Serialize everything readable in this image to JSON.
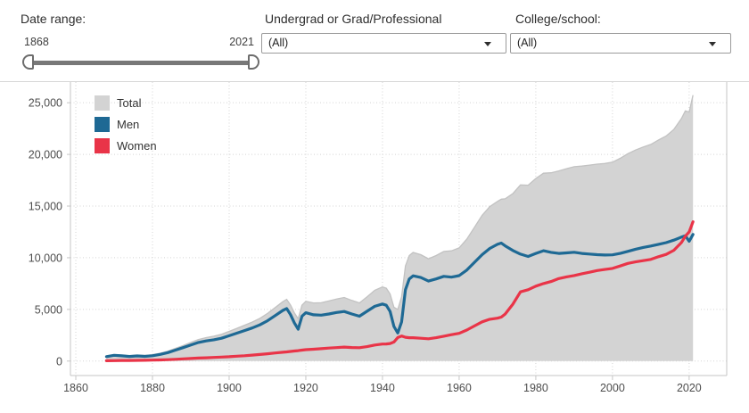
{
  "filters": {
    "date_range": {
      "label": "Date range:",
      "min_value": "1868",
      "max_value": "2021"
    },
    "level_filter": {
      "label": "Undergrad or Grad/Professional",
      "value": "(All)"
    },
    "college_filter": {
      "label": "College/school:",
      "value": "(All)"
    }
  },
  "chart_data": {
    "type": "area",
    "title": "",
    "xlabel": "",
    "ylabel": "",
    "grid": "dotted",
    "legend_position": "top-left",
    "x_ticks": [
      1860,
      1880,
      1900,
      1920,
      1940,
      1960,
      1980,
      2000,
      2020
    ],
    "y_ticks": [
      0,
      5000,
      10000,
      15000,
      20000,
      25000
    ],
    "y_tick_labels": [
      "0",
      "5,000",
      "10,000",
      "15,000",
      "20,000",
      "25,000"
    ],
    "xlim": [
      1858.6,
      2029.8
    ],
    "ylim": [
      -1400,
      27000
    ],
    "years": [
      1868,
      1870,
      1872,
      1874,
      1876,
      1878,
      1880,
      1882,
      1884,
      1886,
      1888,
      1890,
      1892,
      1894,
      1896,
      1898,
      1900,
      1902,
      1904,
      1906,
      1908,
      1910,
      1912,
      1914,
      1915,
      1916,
      1917,
      1918,
      1919,
      1920,
      1922,
      1924,
      1926,
      1928,
      1930,
      1932,
      1934,
      1936,
      1938,
      1940,
      1941,
      1942,
      1943,
      1944,
      1945,
      1946,
      1947,
      1948,
      1950,
      1952,
      1954,
      1956,
      1958,
      1960,
      1962,
      1964,
      1966,
      1968,
      1970,
      1971,
      1972,
      1974,
      1976,
      1978,
      1980,
      1982,
      1984,
      1986,
      1988,
      1990,
      1992,
      1994,
      1996,
      1998,
      2000,
      2002,
      2004,
      2006,
      2008,
      2010,
      2012,
      2014,
      2016,
      2018,
      2019,
      2020,
      2021
    ],
    "series": [
      {
        "name": "Total",
        "color": "#d3d3d3",
        "edge_color": "#c2c2c2",
        "style": "area",
        "values": [
          460,
          605,
          565,
          510,
          570,
          540,
          615,
          760,
          960,
          1230,
          1510,
          1810,
          2090,
          2270,
          2410,
          2595,
          2875,
          3170,
          3470,
          3775,
          4135,
          4605,
          5180,
          5750,
          5970,
          5430,
          4670,
          4090,
          5410,
          5780,
          5630,
          5640,
          5815,
          6005,
          6150,
          5870,
          5630,
          6220,
          6850,
          7170,
          7060,
          6500,
          5200,
          5000,
          6220,
          9200,
          10210,
          10510,
          10300,
          9900,
          10210,
          10610,
          10670,
          10950,
          11800,
          12950,
          14100,
          14950,
          15450,
          15670,
          15700,
          16200,
          17050,
          17020,
          17670,
          18180,
          18220,
          18400,
          18620,
          18810,
          18870,
          18960,
          19060,
          19120,
          19250,
          19620,
          20070,
          20420,
          20720,
          20970,
          21400,
          21780,
          22420,
          23480,
          24210,
          24100,
          25740
        ]
      },
      {
        "name": "Men",
        "color": "#1e6994",
        "style": "line",
        "values": [
          430,
          560,
          510,
          450,
          500,
          460,
          520,
          650,
          820,
          1060,
          1300,
          1560,
          1800,
          1950,
          2060,
          2210,
          2450,
          2700,
          2950,
          3200,
          3500,
          3900,
          4400,
          4900,
          5080,
          4500,
          3700,
          3080,
          4350,
          4680,
          4480,
          4440,
          4560,
          4700,
          4800,
          4560,
          4340,
          4820,
          5300,
          5520,
          5400,
          4800,
          3350,
          2720,
          3800,
          6900,
          7950,
          8250,
          8090,
          7740,
          7950,
          8200,
          8120,
          8270,
          8800,
          9550,
          10300,
          10900,
          11300,
          11420,
          11150,
          10700,
          10350,
          10120,
          10420,
          10680,
          10520,
          10420,
          10470,
          10530,
          10420,
          10360,
          10300,
          10260,
          10280,
          10420,
          10620,
          10820,
          11000,
          11130,
          11300,
          11460,
          11700,
          12000,
          12130,
          11600,
          12260
        ]
      },
      {
        "name": "Women",
        "color": "#e93448",
        "style": "line",
        "values": [
          30,
          45,
          55,
          60,
          70,
          80,
          95,
          110,
          140,
          170,
          210,
          250,
          290,
          320,
          350,
          385,
          425,
          470,
          520,
          575,
          635,
          705,
          780,
          850,
          890,
          930,
          970,
          1010,
          1060,
          1100,
          1150,
          1200,
          1255,
          1305,
          1350,
          1310,
          1290,
          1400,
          1550,
          1650,
          1660,
          1700,
          1850,
          2280,
          2420,
          2300,
          2260,
          2260,
          2210,
          2160,
          2260,
          2410,
          2550,
          2680,
          3000,
          3400,
          3800,
          4050,
          4150,
          4250,
          4550,
          5500,
          6700,
          6900,
          7250,
          7500,
          7700,
          7980,
          8150,
          8280,
          8450,
          8600,
          8760,
          8860,
          8970,
          9200,
          9450,
          9600,
          9720,
          9840,
          10100,
          10320,
          10720,
          11480,
          12080,
          12500,
          13480
        ]
      }
    ]
  }
}
